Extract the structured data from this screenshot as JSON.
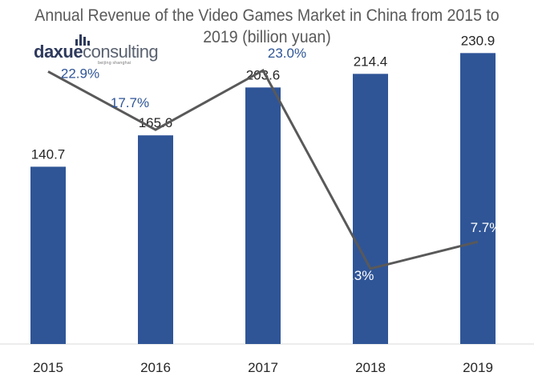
{
  "title": {
    "line1": "Annual Revenue of the Video Games Market in China from 2015 to",
    "line2": "2019 (billion yuan)"
  },
  "logo": {
    "brand_part1": "daxue",
    "brand_part2": "consulting",
    "tagline": "beijing shanghai"
  },
  "colors": {
    "bar": "#2f5597",
    "line": "#595959",
    "growth_label": "#2f5597",
    "text": "#262626",
    "axis": "#d9d9d9"
  },
  "chart_data": {
    "type": "bar",
    "categories": [
      "2015",
      "2016",
      "2017",
      "2018",
      "2019"
    ],
    "series": [
      {
        "values": [
          140.7,
          165.6,
          203.6,
          214.4,
          230.9
        ],
        "type": "bar"
      },
      {
        "values": [
          22.9,
          17.7,
          23.0,
          5.3,
          7.7
        ],
        "type": "line",
        "unit": "%"
      }
    ],
    "bar_labels": [
      "140.7",
      "165.6",
      "203.6",
      "214.4",
      "230.9"
    ],
    "growth_labels": [
      "22.9%",
      "17.7%",
      "23.0%",
      "5.3%",
      "7.7%"
    ],
    "ylim": [
      0,
      240
    ],
    "y2lim": [
      0,
      25
    ],
    "grid": false,
    "legend": "none"
  }
}
